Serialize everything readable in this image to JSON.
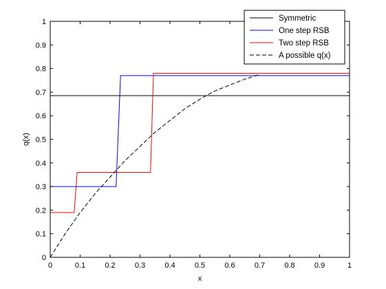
{
  "chart_data": {
    "type": "line",
    "xlabel": "x",
    "ylabel": "q(x)",
    "xlim": [
      0,
      1
    ],
    "ylim": [
      0,
      1
    ],
    "xticks": [
      "0",
      "0.1",
      "0.2",
      "0.3",
      "0.4",
      "0.5",
      "0.6",
      "0.7",
      "0.8",
      "0.9",
      "1"
    ],
    "yticks": [
      "0",
      "0.1",
      "0.2",
      "0.3",
      "0.4",
      "0.5",
      "0.6",
      "0.7",
      "0.8",
      "0.9",
      "1"
    ],
    "grid": false,
    "legend_position": "top-right",
    "series": [
      {
        "name": "Symmetric",
        "color": "#000000",
        "style": "solid",
        "x": [
          0,
          1
        ],
        "y": [
          0.685,
          0.685
        ]
      },
      {
        "name": "One step RSB",
        "color": "#0000ff",
        "style": "solid",
        "x": [
          0,
          0.22,
          0.235,
          1
        ],
        "y": [
          0.3,
          0.3,
          0.77,
          0.77
        ]
      },
      {
        "name": "Two step RSB",
        "color": "#ff0000",
        "style": "solid",
        "x": [
          0,
          0.08,
          0.09,
          0.335,
          0.345,
          1
        ],
        "y": [
          0.19,
          0.19,
          0.36,
          0.36,
          0.78,
          0.78
        ]
      },
      {
        "name": "A possible q(x)",
        "color": "#000000",
        "style": "dashed",
        "x": [
          0,
          0.05,
          0.1,
          0.15,
          0.2,
          0.25,
          0.3,
          0.35,
          0.4,
          0.45,
          0.5,
          0.55,
          0.6,
          0.65,
          0.7
        ],
        "y": [
          0,
          0.1,
          0.19,
          0.27,
          0.34,
          0.41,
          0.47,
          0.53,
          0.58,
          0.63,
          0.67,
          0.705,
          0.73,
          0.755,
          0.775
        ]
      }
    ]
  }
}
